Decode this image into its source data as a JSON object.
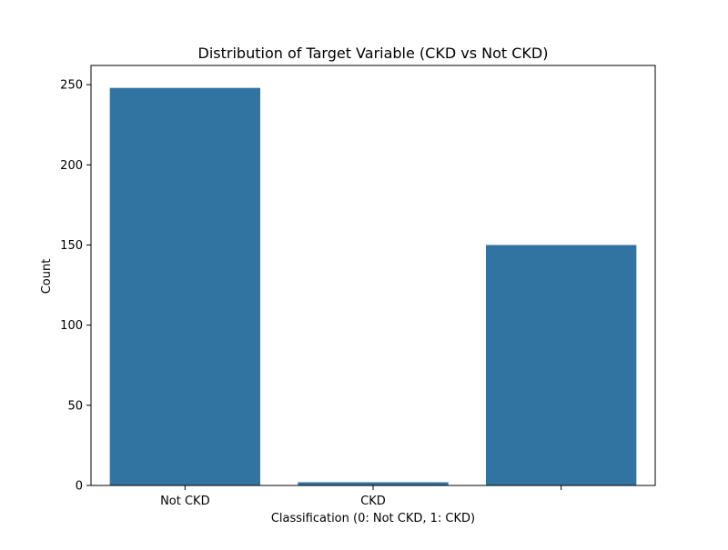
{
  "chart_data": {
    "type": "bar",
    "title": "Distribution of Target Variable (CKD vs Not CKD)",
    "xlabel": "Classification (0: Not CKD, 1: CKD)",
    "ylabel": "Count",
    "categories": [
      "Not CKD",
      "CKD",
      ""
    ],
    "values": [
      248,
      2,
      150
    ],
    "ylim": [
      0,
      262
    ],
    "yticks": [
      0,
      50,
      100,
      150,
      200,
      250
    ],
    "grid": false,
    "bar_color": "#3274a1"
  }
}
